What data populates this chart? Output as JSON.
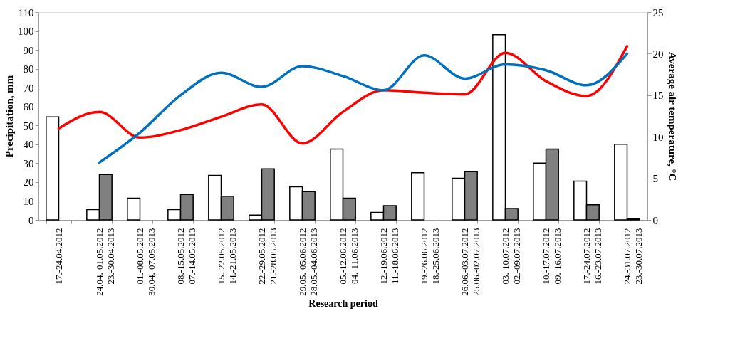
{
  "chart_data": {
    "type": "bar",
    "xlabel": "Research period",
    "ylabel": "Precipitation, mm",
    "y2label": "Average air temperature, °C",
    "categories": [
      "17.-24.04.2012",
      "24.04.-01.05.2012\n23.-30.04.2013",
      "01.-08.05.2012\n30.04.-07.05.2013",
      "08.-15.05.2012\n07.-14.05.2013",
      "15.-22.05.2012\n14.-21.05.2013",
      "22.-29.05.2012\n21.-28.05.2013",
      "29.05.-05.06.2012\n28.05.-04.06.2013",
      "05.-12.06.2012\n04.-11.06.2013",
      "12.-19.06.2012\n11.-18.06.2013",
      "19.-26.06.2012\n18.-25.06.2013",
      "26.06.-03.07.2012\n25.06.-02.07.2013",
      "03.-10.07.2012\n02.-09.07.2013",
      "10.-17.07.2012\n09.-16.07.2013",
      "17.-24.07.2012\n16.-23.07.2013",
      "24.-31.07.2012\n23.-30.07.2013"
    ],
    "series": [
      {
        "axis": "y",
        "color": "#ffffff",
        "values": [
          54.5,
          5.5,
          11.5,
          5.5,
          23.5,
          2.5,
          17.5,
          37.5,
          4,
          25,
          22,
          98,
          30,
          20.5,
          40
        ]
      },
      {
        "axis": "y",
        "color": "#808080",
        "values": [
          null,
          24,
          null,
          13.5,
          12.5,
          27,
          15,
          11.5,
          7.5,
          null,
          25.5,
          6,
          37.5,
          8,
          0.5
        ]
      },
      {
        "type": "line",
        "axis": "y2",
        "color": "#ff0000",
        "values": [
          11.0,
          13.0,
          9.9,
          10.8,
          12.4,
          13.9,
          9.2,
          13.0,
          15.6,
          15.3,
          15.1,
          20.1,
          16.7,
          14.9,
          20.9
        ]
      },
      {
        "type": "line",
        "axis": "y2",
        "color": "#0070c0",
        "values": [
          null,
          6.9,
          10.5,
          15.0,
          17.7,
          16.0,
          18.5,
          17.3,
          15.6,
          19.8,
          17.0,
          18.7,
          18.0,
          16.2,
          20.0
        ]
      }
    ],
    "ylim": [
      0,
      110
    ],
    "yticks": [
      0,
      10,
      20,
      30,
      40,
      50,
      60,
      70,
      80,
      90,
      100,
      110
    ],
    "y2lim": [
      0,
      25
    ],
    "y2ticks": [
      0,
      5,
      10,
      15,
      20,
      25
    ],
    "grid": false,
    "legend": false,
    "marker": "none",
    "line_style": "solid"
  }
}
